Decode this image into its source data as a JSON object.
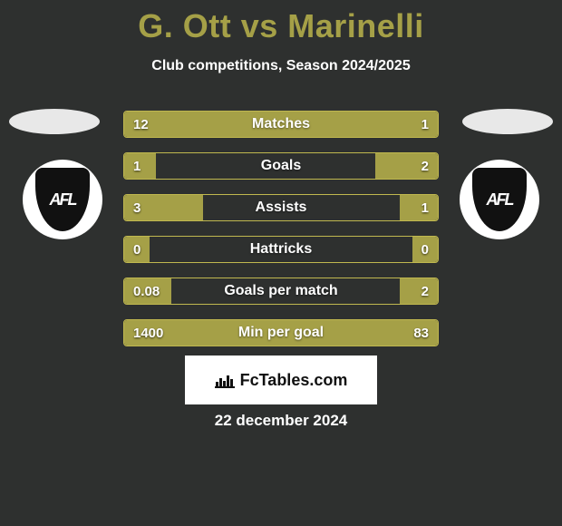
{
  "title": "G. Ott vs Marinelli",
  "subtitle": "Club competitions, Season 2024/2025",
  "date": "22 december 2024",
  "logo_text": "FcTables.com",
  "colors": {
    "accent": "#a5a047",
    "accent_border": "#c0b84f",
    "background": "#2e302f",
    "text": "#ffffff"
  },
  "club_badge_text": "AFL",
  "stats": [
    {
      "label": "Matches",
      "left_val": "12",
      "right_val": "1",
      "left_pct": 80,
      "right_pct": 20
    },
    {
      "label": "Goals",
      "left_val": "1",
      "right_val": "2",
      "left_pct": 10,
      "right_pct": 20
    },
    {
      "label": "Assists",
      "left_val": "3",
      "right_val": "1",
      "left_pct": 25,
      "right_pct": 12
    },
    {
      "label": "Hattricks",
      "left_val": "0",
      "right_val": "0",
      "left_pct": 8,
      "right_pct": 8
    },
    {
      "label": "Goals per match",
      "left_val": "0.08",
      "right_val": "2",
      "left_pct": 15,
      "right_pct": 12
    },
    {
      "label": "Min per goal",
      "left_val": "1400",
      "right_val": "83",
      "left_pct": 78,
      "right_pct": 22
    }
  ]
}
